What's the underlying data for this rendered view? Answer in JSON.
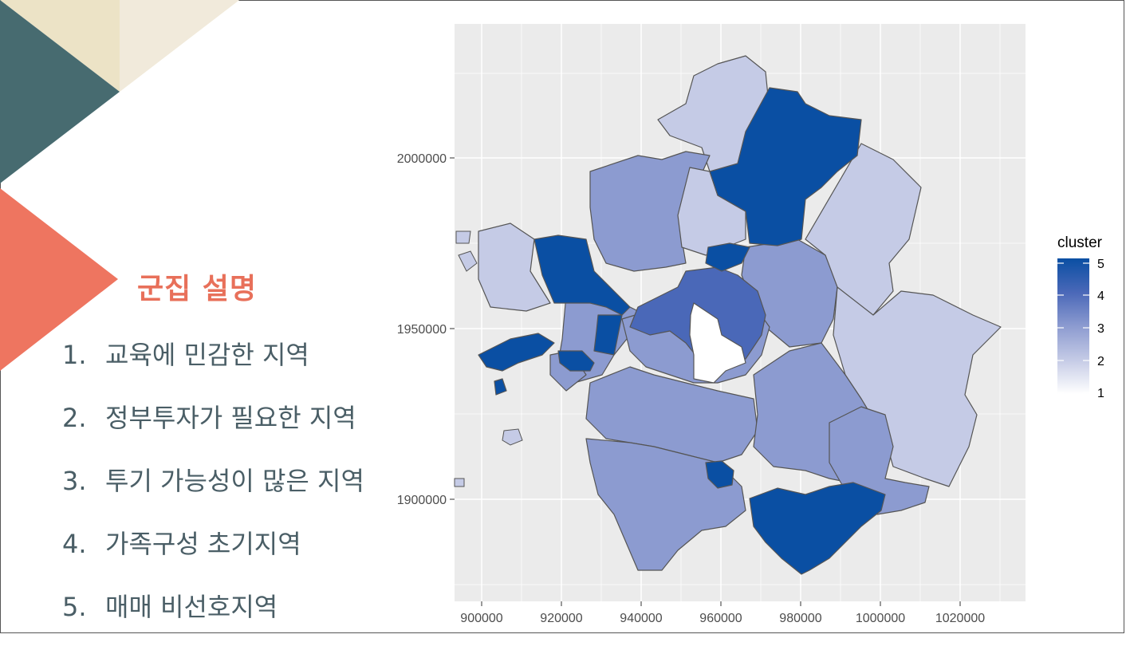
{
  "slide": {
    "title": "군집 설명",
    "items": [
      {
        "num": "1.",
        "text": "교육에 민감한 지역"
      },
      {
        "num": "2.",
        "text": "정부투자가 필요한 지역"
      },
      {
        "num": "3.",
        "text": "투기 가능성이 많은 지역"
      },
      {
        "num": "4.",
        "text": "가족구성 초기지역"
      },
      {
        "num": "5.",
        "text": "매매 비선호지역"
      }
    ],
    "colors": {
      "title": "#e8705a",
      "text": "#4a5e66",
      "teal": "#476b70",
      "coral": "#ee7560",
      "beige": "#ece3c6"
    }
  },
  "map": {
    "x_ticks": [
      "900000",
      "920000",
      "940000",
      "960000",
      "980000",
      "1000000",
      "1020000"
    ],
    "y_ticks": [
      "2000000",
      "1950000",
      "1900000"
    ],
    "legend": {
      "title": "cluster",
      "labels": [
        "5",
        "4",
        "3",
        "2",
        "1"
      ],
      "colors": [
        "#0a4fa3",
        "#4a68b8",
        "#8c9bd0",
        "#c5cbe6",
        "#ffffff"
      ]
    },
    "panel_bg": "#ebebeb"
  }
}
